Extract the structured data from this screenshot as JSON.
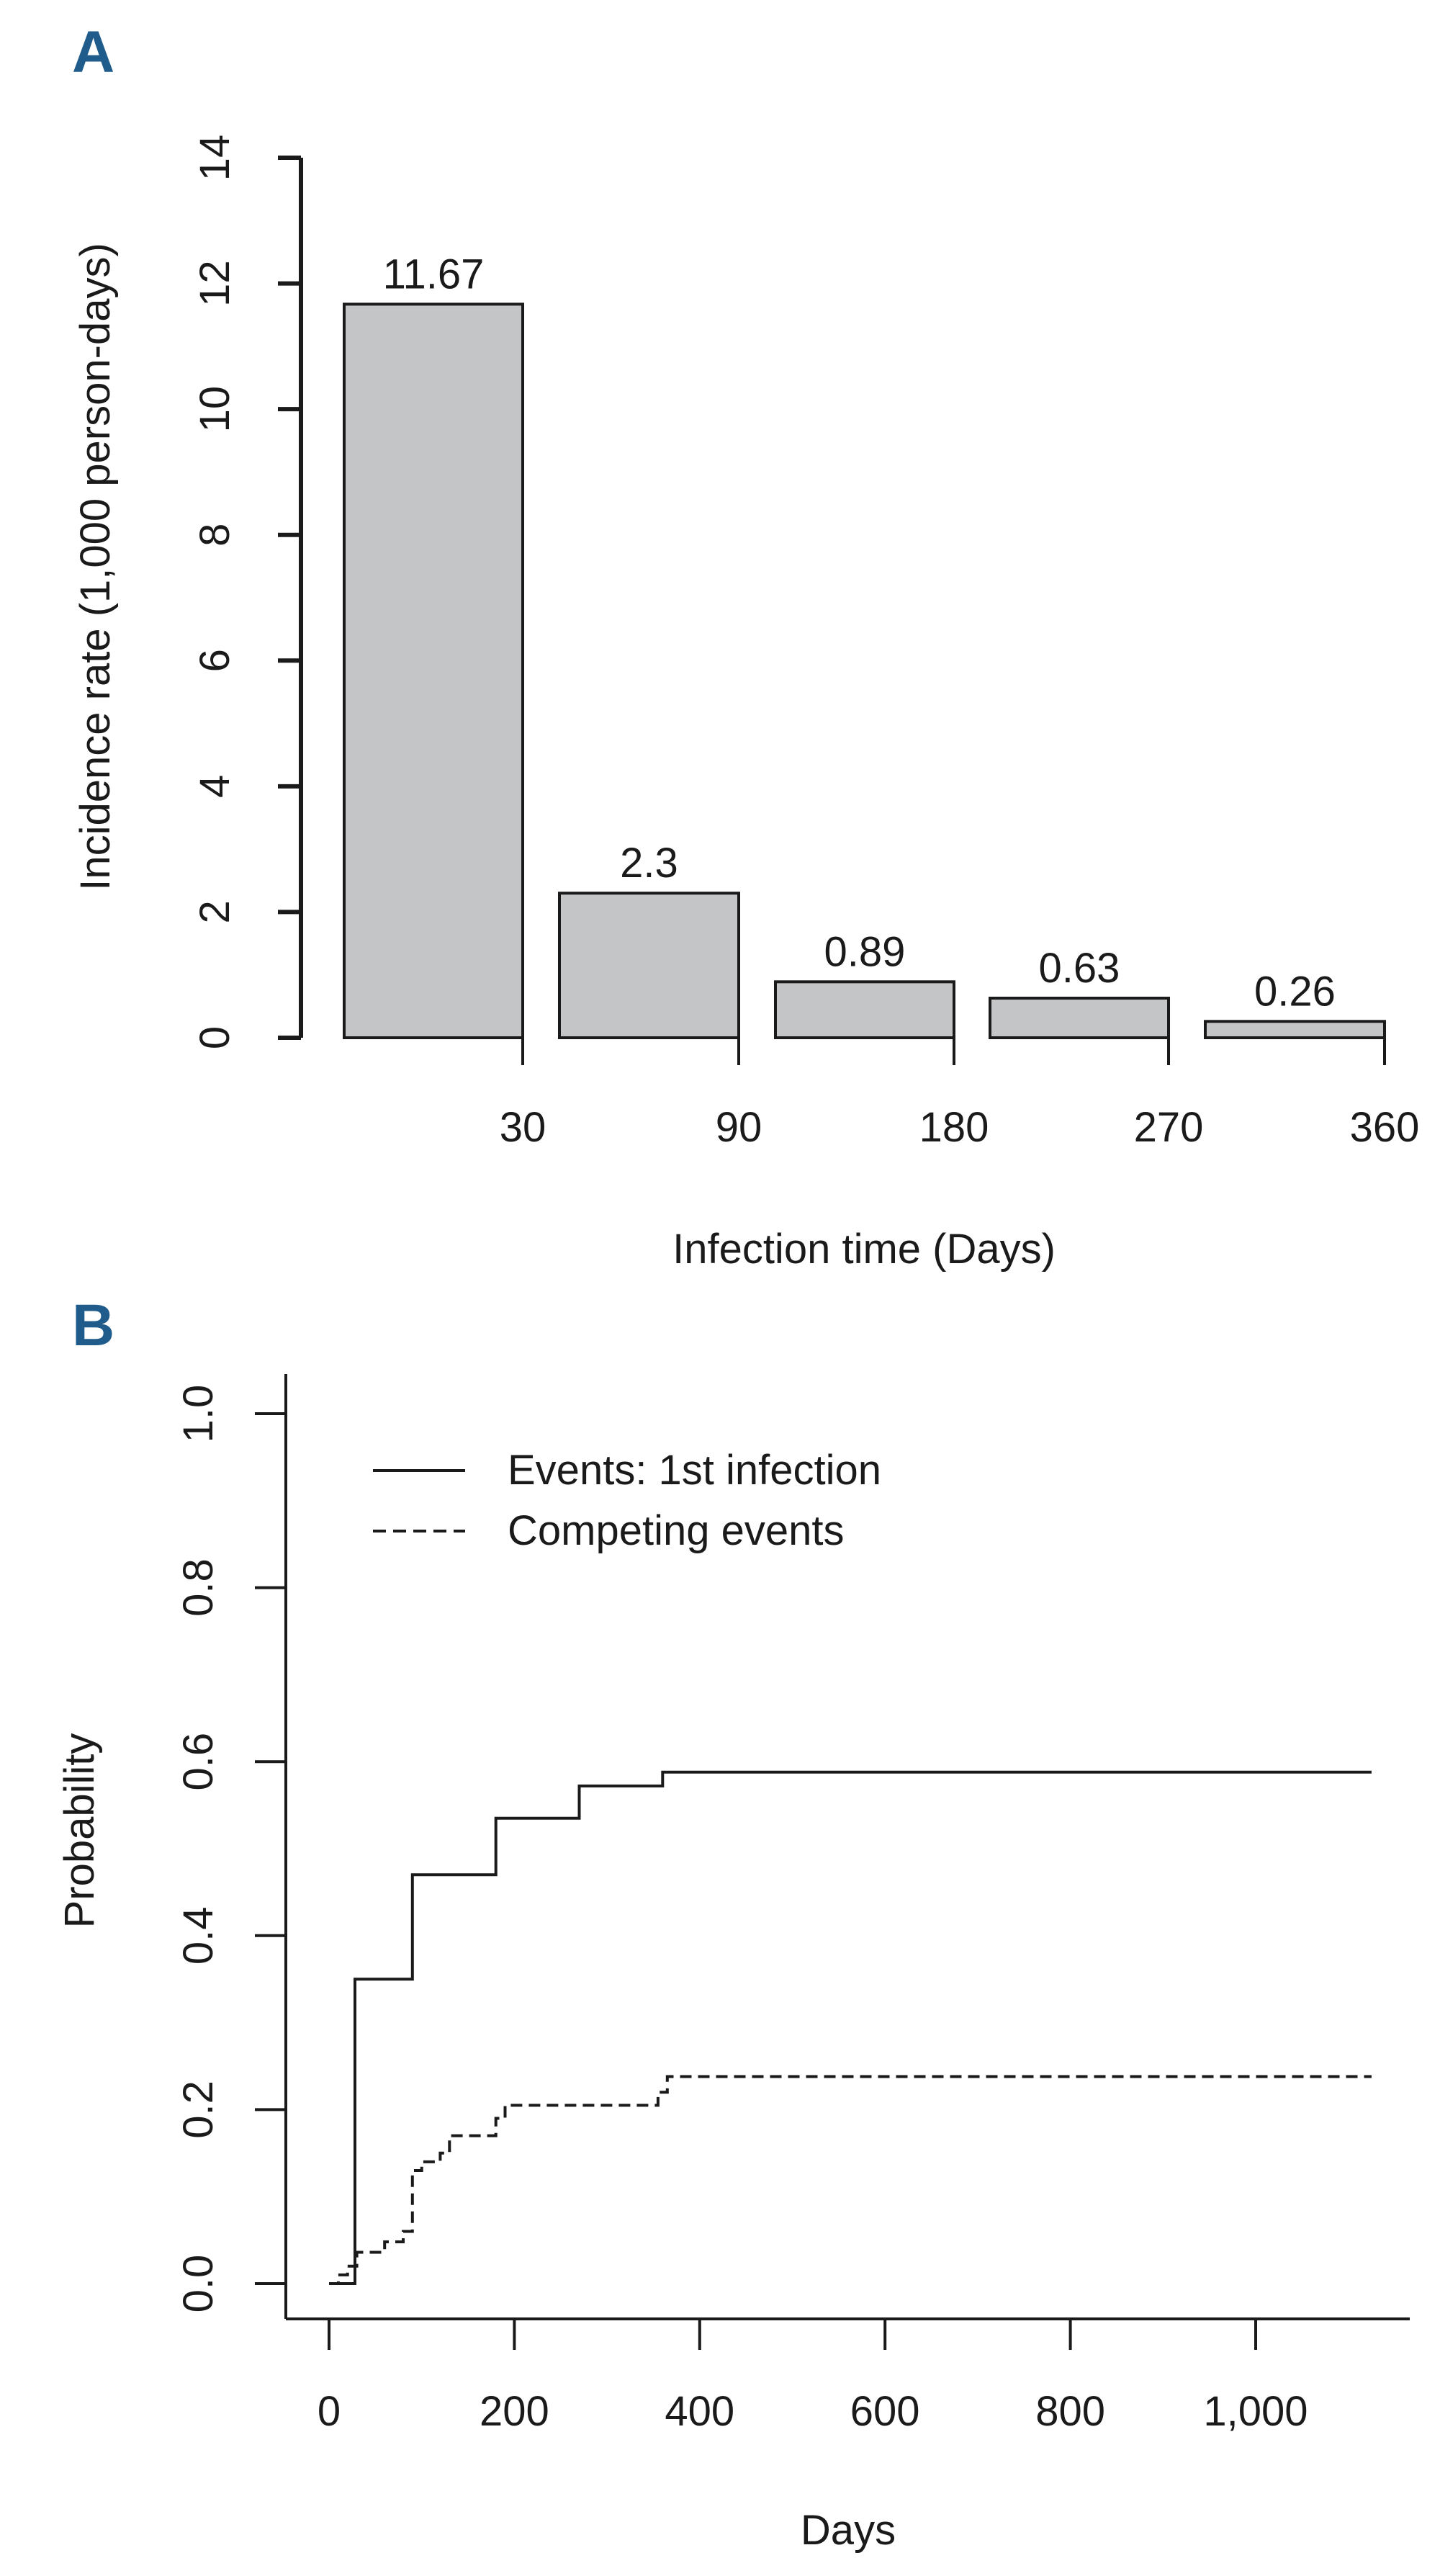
{
  "chart_data": [
    {
      "panel": "A",
      "type": "bar",
      "xlabel": "Infection time (Days)",
      "ylabel": "Incidence rate (1,000 person-days)",
      "ylim": [
        0,
        14
      ],
      "yticks": [
        "0",
        "2",
        "4",
        "6",
        "8",
        "10",
        "12",
        "14"
      ],
      "x_tick_labels": [
        "30",
        "90",
        "180",
        "270",
        "360"
      ],
      "bars": [
        {
          "interval": "0-30",
          "value": 11.67,
          "label": "11.67"
        },
        {
          "interval": "30-90",
          "value": 2.3,
          "label": "2.3"
        },
        {
          "interval": "90-180",
          "value": 0.89,
          "label": "0.89"
        },
        {
          "interval": "180-270",
          "value": 0.63,
          "label": "0.63"
        },
        {
          "interval": "270-360",
          "value": 0.26,
          "label": "0.26"
        }
      ],
      "colors": {
        "bar_fill": "#c4c5c7",
        "bar_stroke": "#1a1a1a"
      }
    },
    {
      "panel": "B",
      "type": "line",
      "xlabel": "Days",
      "ylabel": "Probability",
      "xlim": [
        0,
        1170
      ],
      "ylim": [
        0,
        1
      ],
      "xticks": [
        0,
        200,
        400,
        600,
        800,
        1000
      ],
      "xtick_labels": [
        "0",
        "200",
        "400",
        "600",
        "800",
        "1,000"
      ],
      "yticks": [
        0,
        0.2,
        0.4,
        0.6,
        0.8,
        1.0
      ],
      "ytick_labels": [
        "0.0",
        "0.2",
        "0.4",
        "0.6",
        "0.8",
        "1.0"
      ],
      "legend": {
        "position": "top-left"
      },
      "series": [
        {
          "name": "Events: 1st infection",
          "style": "solid",
          "x": [
            0,
            28,
            28,
            90,
            90,
            180,
            180,
            270,
            270,
            360,
            360,
            1125
          ],
          "y": [
            0,
            0,
            0.35,
            0.35,
            0.47,
            0.47,
            0.535,
            0.535,
            0.572,
            0.572,
            0.588,
            0.588
          ]
        },
        {
          "name": "Competing events",
          "style": "dashed",
          "x": [
            0,
            10,
            10,
            20,
            20,
            30,
            30,
            60,
            60,
            80,
            80,
            90,
            90,
            100,
            100,
            120,
            120,
            130,
            130,
            180,
            180,
            190,
            190,
            355,
            355,
            365,
            365,
            1125
          ],
          "y": [
            0,
            0,
            0.01,
            0.01,
            0.02,
            0.02,
            0.036,
            0.036,
            0.048,
            0.048,
            0.06,
            0.06,
            0.13,
            0.13,
            0.14,
            0.14,
            0.15,
            0.15,
            0.17,
            0.17,
            0.19,
            0.19,
            0.205,
            0.205,
            0.22,
            0.22,
            0.238,
            0.238
          ]
        }
      ]
    }
  ]
}
